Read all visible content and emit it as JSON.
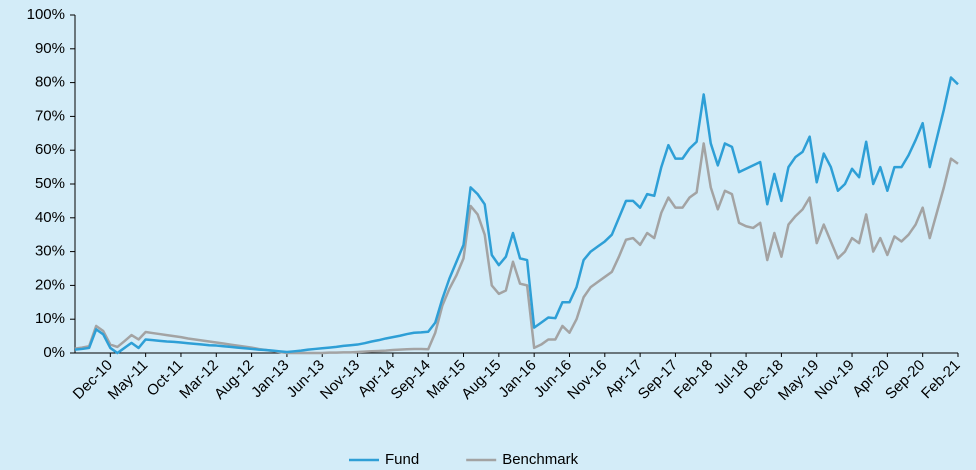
{
  "chart_data": {
    "type": "line",
    "categories": [
      null,
      null,
      null,
      null,
      null,
      "Dec-10",
      null,
      null,
      null,
      null,
      "May-11",
      null,
      null,
      null,
      null,
      "Oct-11",
      null,
      null,
      null,
      null,
      "Mar-12",
      null,
      null,
      null,
      null,
      "Aug-12",
      null,
      null,
      null,
      null,
      "Jan-13",
      null,
      null,
      null,
      null,
      "Jun-13",
      null,
      null,
      null,
      null,
      "Nov-13",
      null,
      null,
      null,
      null,
      "Apr-14",
      null,
      null,
      null,
      null,
      "Sep-14",
      null,
      null,
      null,
      null,
      "Mar-15",
      null,
      null,
      null,
      null,
      "Aug-15",
      null,
      null,
      null,
      null,
      "Jan-16",
      null,
      null,
      null,
      null,
      "Jun-16",
      null,
      null,
      null,
      null,
      "Nov-16",
      null,
      null,
      null,
      null,
      "Apr-17",
      null,
      null,
      null,
      null,
      "Sep-17",
      null,
      null,
      null,
      null,
      "Feb-18",
      null,
      null,
      null,
      null,
      "Jul-18",
      null,
      null,
      null,
      null,
      "Dec-18",
      null,
      null,
      null,
      null,
      "May-19",
      null,
      null,
      null,
      null,
      "Nov-19",
      null,
      null,
      null,
      null,
      "Apr-20",
      null,
      null,
      null,
      null,
      "Sep-20",
      null,
      null,
      null,
      null,
      "Feb-21"
    ],
    "series": [
      {
        "name": "Benchmark",
        "color": "#a3a3a3",
        "values": [
          1.3,
          1.6,
          2.0,
          8.0,
          6.5,
          2.5,
          1.8,
          3.5,
          5.3,
          4.0,
          6.2,
          5.9,
          5.6,
          5.3,
          5.0,
          4.7,
          4.3,
          4.0,
          3.7,
          3.4,
          3.1,
          2.8,
          2.5,
          2.2,
          1.9,
          1.6,
          1.2,
          0.9,
          0.6,
          0.3,
          0,
          0,
          0,
          0,
          0,
          0,
          0.1,
          0.1,
          0.2,
          0.2,
          0.3,
          0.4,
          0.5,
          0.6,
          0.7,
          0.9,
          1.0,
          1.1,
          1.2,
          1.2,
          1.1,
          6,
          14,
          19,
          23,
          28,
          43.5,
          41,
          35,
          20,
          17.5,
          18.5,
          27,
          20.5,
          20,
          1.5,
          2.5,
          4,
          4,
          8,
          6,
          10,
          16.5,
          19.5,
          21,
          22.5,
          24,
          28.5,
          33.5,
          34,
          32,
          35.5,
          34,
          41.5,
          46,
          43,
          43,
          46,
          47.5,
          62,
          49,
          42.5,
          48,
          47,
          38.5,
          37.5,
          37,
          38.5,
          27.5,
          35.5,
          28.5,
          38,
          40.5,
          42.5,
          46,
          32.5,
          38,
          33,
          28,
          30,
          34,
          32.5,
          41,
          30,
          34,
          29,
          34.5,
          33,
          35,
          38,
          43,
          34,
          41.5,
          49,
          57.5,
          56
        ]
      },
      {
        "name": "Fund",
        "color": "#2e9fd6",
        "values": [
          1.0,
          1.2,
          1.5,
          7.0,
          5.5,
          1.5,
          0.0,
          1.5,
          3.0,
          1.5,
          4.0,
          3.8,
          3.6,
          3.4,
          3.3,
          3.1,
          2.9,
          2.7,
          2.5,
          2.3,
          2.2,
          2.0,
          1.8,
          1.6,
          1.4,
          1.2,
          1.0,
          0.9,
          0.7,
          0.5,
          0.3,
          0.5,
          0.7,
          1.0,
          1.2,
          1.4,
          1.6,
          1.8,
          2.1,
          2.3,
          2.5,
          2.9,
          3.4,
          3.8,
          4.3,
          4.7,
          5.1,
          5.6,
          6.0,
          6.1,
          6.3,
          9,
          16,
          22,
          27,
          32,
          49,
          47,
          44,
          29,
          26,
          28.5,
          35.5,
          28,
          27.5,
          7.5,
          9,
          10.5,
          10.3,
          15,
          15,
          19.5,
          27.5,
          30,
          31.5,
          33,
          35,
          40,
          45,
          45,
          43,
          47,
          46.5,
          55,
          61.5,
          57.5,
          57.5,
          60.5,
          62.5,
          76.5,
          62,
          55.5,
          62,
          61,
          53.5,
          54.5,
          55.5,
          56.5,
          44,
          53,
          45,
          55,
          58,
          59.5,
          64,
          50.5,
          59,
          55,
          48,
          50,
          54.5,
          52,
          62.5,
          50,
          55,
          48,
          55,
          55,
          58.5,
          63,
          68,
          55,
          63.5,
          72,
          81.5,
          79.5
        ]
      }
    ],
    "ylim": [
      0,
      100
    ],
    "yticks": [
      {
        "value": 0,
        "label": "0%"
      },
      {
        "value": 10,
        "label": "10%"
      },
      {
        "value": 20,
        "label": "20%"
      },
      {
        "value": 30,
        "label": "30%"
      },
      {
        "value": 40,
        "label": "40%"
      },
      {
        "value": 50,
        "label": "50%"
      },
      {
        "value": 60,
        "label": "60%"
      },
      {
        "value": 70,
        "label": "70%"
      },
      {
        "value": 80,
        "label": "80%"
      },
      {
        "value": 90,
        "label": "90%"
      },
      {
        "value": 100,
        "label": "100%"
      }
    ],
    "legend": "bottom"
  }
}
